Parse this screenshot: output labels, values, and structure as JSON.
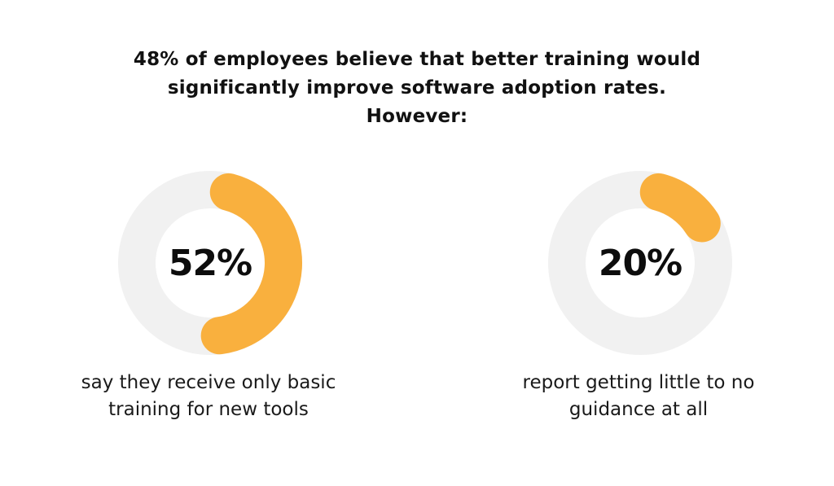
{
  "headline": {
    "line1": "48% of employees believe that better training would",
    "line2": "significantly improve software adoption rates.",
    "line3": "However:"
  },
  "colors": {
    "accent": "#F9B03E",
    "track": "#F1F1F1",
    "text": "#111111"
  },
  "chart_data": [
    {
      "type": "pie",
      "label": "52%",
      "value": 52,
      "max": 100,
      "caption_line1": "say they receive only basic",
      "caption_line2": "training for new tools"
    },
    {
      "type": "pie",
      "label": "20%",
      "value": 20,
      "max": 100,
      "caption_line1": "report getting little to no",
      "caption_line2": "guidance at all"
    }
  ]
}
